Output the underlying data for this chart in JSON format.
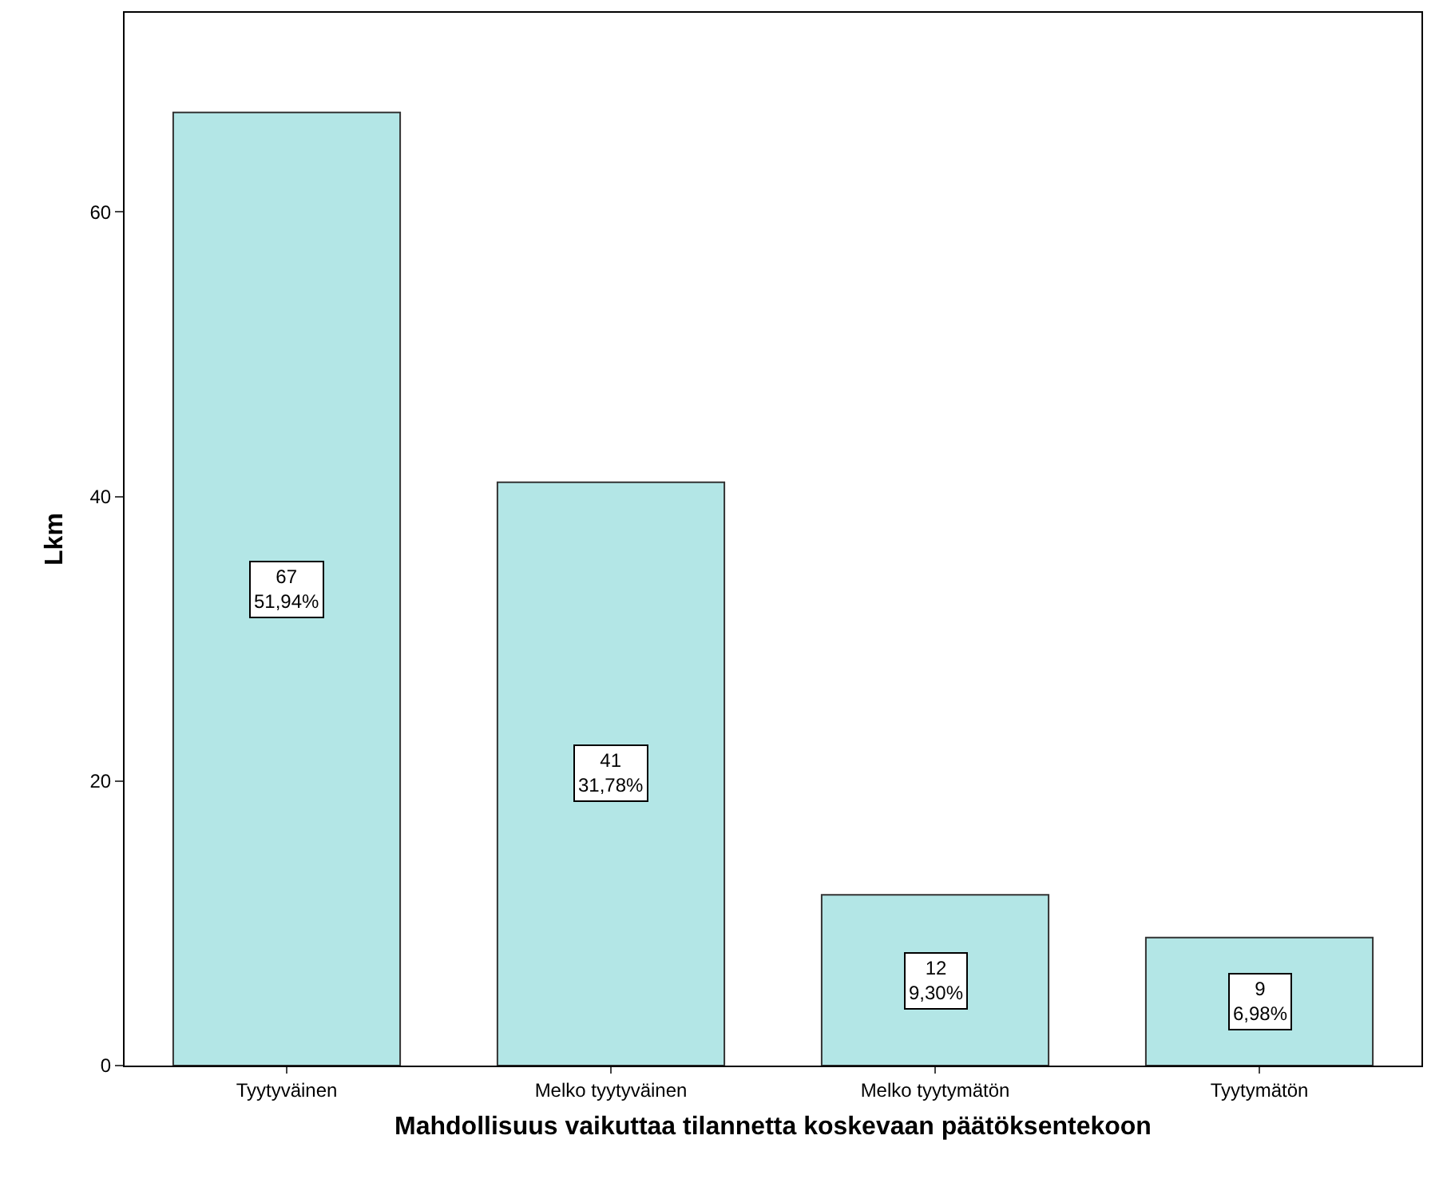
{
  "chart_data": {
    "type": "bar",
    "xlabel": "Mahdollisuus vaikuttaa tilannetta koskevaan päätöksentekoon",
    "ylabel": "Lkm",
    "categories": [
      "Tyytyväinen",
      "Melko tyytyväinen",
      "Melko tyytymätön",
      "Tyytymätön"
    ],
    "values": [
      67,
      41,
      12,
      9
    ],
    "value_labels": [
      "67\n51,94%",
      "41\n31,78%",
      "12\n9,30%",
      "9\n6,98%"
    ],
    "color": "#b3e6e6",
    "ylim": [
      0,
      74
    ],
    "yticks": [
      0,
      20,
      40,
      60
    ],
    "grid": false,
    "legend": false
  }
}
